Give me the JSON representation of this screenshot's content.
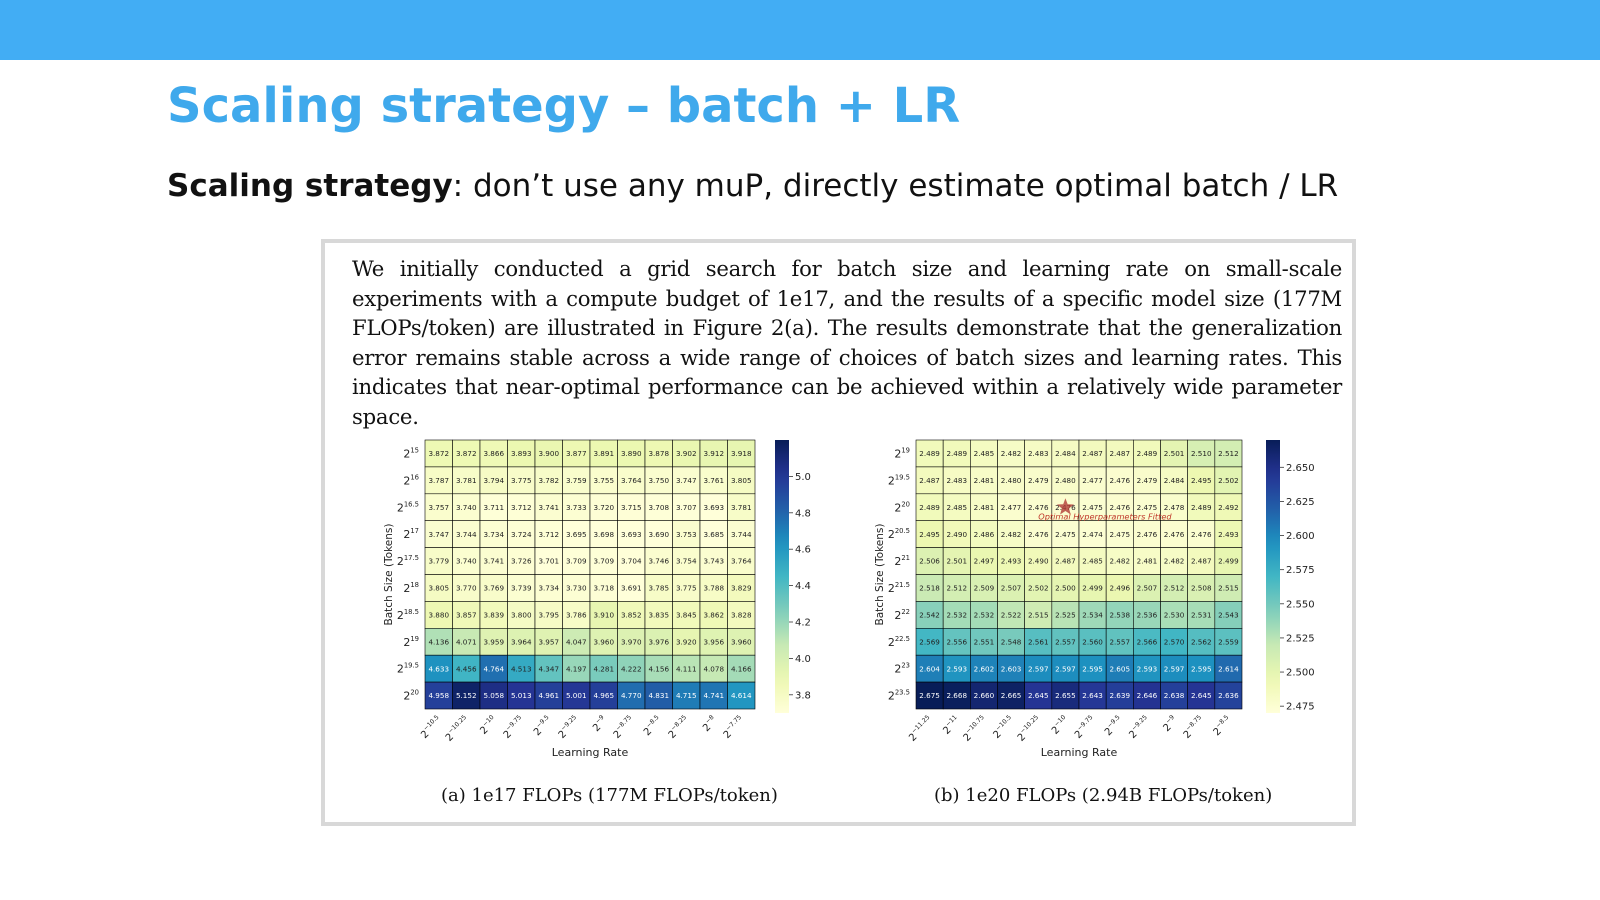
{
  "slide": {
    "title": "Scaling strategy – batch + LR",
    "subtitle_bold": "Scaling strategy",
    "subtitle_rest": ": don’t use any muP, directly estimate optimal batch / LR",
    "paragraph": "We initially conducted a grid search for batch size and learning rate on small-scale experiments with a compute budget of 1e17, and the results of a specific model size (177M FLOPs/token) are illustrated in Figure 2(a). The results demonstrate that the generalization error remains stable across a wide range of choices of batch sizes and learning rates. This indicates that near-optimal performance can be achieved within a relatively wide parameter space.",
    "accent_color": "#42adf4",
    "title_color": "#3fa9ec"
  },
  "chart_data": [
    {
      "type": "heatmap",
      "caption": "(a)  1e17 FLOPs (177M FLOPs/token)",
      "xlabel": "Learning Rate",
      "ylabel": "Batch Size (Tokens)",
      "x_ticks": [
        {
          "base": "2",
          "exp": "−10.5"
        },
        {
          "base": "2",
          "exp": "−10.25"
        },
        {
          "base": "2",
          "exp": "−10"
        },
        {
          "base": "2",
          "exp": "−9.75"
        },
        {
          "base": "2",
          "exp": "−9.5"
        },
        {
          "base": "2",
          "exp": "−9.25"
        },
        {
          "base": "2",
          "exp": "−9"
        },
        {
          "base": "2",
          "exp": "−8.75"
        },
        {
          "base": "2",
          "exp": "−8.5"
        },
        {
          "base": "2",
          "exp": "−8.25"
        },
        {
          "base": "2",
          "exp": "−8"
        },
        {
          "base": "2",
          "exp": "−7.75"
        }
      ],
      "y_ticks": [
        {
          "base": "2",
          "exp": "15"
        },
        {
          "base": "2",
          "exp": "16"
        },
        {
          "base": "2",
          "exp": "16.5"
        },
        {
          "base": "2",
          "exp": "17"
        },
        {
          "base": "2",
          "exp": "17.5"
        },
        {
          "base": "2",
          "exp": "18"
        },
        {
          "base": "2",
          "exp": "18.5"
        },
        {
          "base": "2",
          "exp": "19"
        },
        {
          "base": "2",
          "exp": "19.5"
        },
        {
          "base": "2",
          "exp": "20"
        }
      ],
      "values": [
        [
          3.872,
          3.872,
          3.866,
          3.893,
          3.9,
          3.877,
          3.891,
          3.89,
          3.878,
          3.902,
          3.912,
          3.918
        ],
        [
          3.787,
          3.781,
          3.794,
          3.775,
          3.782,
          3.759,
          3.755,
          3.764,
          3.75,
          3.747,
          3.761,
          3.805
        ],
        [
          3.757,
          3.74,
          3.711,
          3.712,
          3.741,
          3.733,
          3.72,
          3.715,
          3.708,
          3.707,
          3.693,
          3.781
        ],
        [
          3.747,
          3.744,
          3.734,
          3.724,
          3.712,
          3.695,
          3.698,
          3.693,
          3.69,
          3.753,
          3.685,
          3.744
        ],
        [
          3.779,
          3.74,
          3.741,
          3.726,
          3.701,
          3.709,
          3.709,
          3.704,
          3.746,
          3.754,
          3.743,
          3.764
        ],
        [
          3.805,
          3.77,
          3.769,
          3.739,
          3.734,
          3.73,
          3.718,
          3.691,
          3.785,
          3.775,
          3.788,
          3.829
        ],
        [
          3.88,
          3.857,
          3.839,
          3.8,
          3.795,
          3.786,
          3.91,
          3.852,
          3.835,
          3.845,
          3.862,
          3.828
        ],
        [
          4.136,
          4.071,
          3.959,
          3.964,
          3.957,
          4.047,
          3.96,
          3.97,
          3.976,
          3.92,
          3.956,
          3.96
        ],
        [
          4.633,
          4.456,
          4.764,
          4.513,
          4.347,
          4.197,
          4.281,
          4.222,
          4.156,
          4.111,
          4.078,
          4.166
        ],
        [
          4.958,
          5.152,
          5.058,
          5.013,
          4.961,
          5.001,
          4.965,
          4.77,
          4.831,
          4.715,
          4.741,
          4.614
        ]
      ],
      "color_range": [
        3.7,
        5.2
      ],
      "colorbar_ticks": [
        "5.0",
        "4.8",
        "4.6",
        "4.4",
        "4.2",
        "4.0",
        "3.8"
      ],
      "colorbar_values": [
        5.0,
        4.8,
        4.6,
        4.4,
        4.2,
        4.0,
        3.8
      ]
    },
    {
      "type": "heatmap",
      "caption": "(b)  1e20 FLOPs (2.94B FLOPs/token)",
      "xlabel": "Learning Rate",
      "ylabel": "Batch Size (Tokens)",
      "annotation": "Optimal Hyperparameters Fitted",
      "star": {
        "row": 2,
        "col": 5
      },
      "x_ticks": [
        {
          "base": "2",
          "exp": "−11.25"
        },
        {
          "base": "2",
          "exp": "−11"
        },
        {
          "base": "2",
          "exp": "−10.75"
        },
        {
          "base": "2",
          "exp": "−10.5"
        },
        {
          "base": "2",
          "exp": "−10.25"
        },
        {
          "base": "2",
          "exp": "−10"
        },
        {
          "base": "2",
          "exp": "−9.75"
        },
        {
          "base": "2",
          "exp": "−9.5"
        },
        {
          "base": "2",
          "exp": "−9.25"
        },
        {
          "base": "2",
          "exp": "−9"
        },
        {
          "base": "2",
          "exp": "−8.75"
        },
        {
          "base": "2",
          "exp": "−8.5"
        }
      ],
      "y_ticks": [
        {
          "base": "2",
          "exp": "19"
        },
        {
          "base": "2",
          "exp": "19.5"
        },
        {
          "base": "2",
          "exp": "20"
        },
        {
          "base": "2",
          "exp": "20.5"
        },
        {
          "base": "2",
          "exp": "21"
        },
        {
          "base": "2",
          "exp": "21.5"
        },
        {
          "base": "2",
          "exp": "22"
        },
        {
          "base": "2",
          "exp": "22.5"
        },
        {
          "base": "2",
          "exp": "23"
        },
        {
          "base": "2",
          "exp": "23.5"
        }
      ],
      "values": [
        [
          2.489,
          2.489,
          2.485,
          2.482,
          2.483,
          2.484,
          2.487,
          2.487,
          2.489,
          2.501,
          2.51,
          2.512
        ],
        [
          2.487,
          2.483,
          2.481,
          2.48,
          2.479,
          2.48,
          2.477,
          2.476,
          2.479,
          2.484,
          2.495,
          2.502
        ],
        [
          2.489,
          2.485,
          2.481,
          2.477,
          2.476,
          2.476,
          2.475,
          2.476,
          2.475,
          2.478,
          2.489,
          2.492
        ],
        [
          2.495,
          2.49,
          2.486,
          2.482,
          2.476,
          2.475,
          2.474,
          2.475,
          2.476,
          2.476,
          2.476,
          2.493
        ],
        [
          2.506,
          2.501,
          2.497,
          2.493,
          2.49,
          2.487,
          2.485,
          2.482,
          2.481,
          2.482,
          2.487,
          2.499
        ],
        [
          2.518,
          2.512,
          2.509,
          2.507,
          2.502,
          2.5,
          2.499,
          2.496,
          2.507,
          2.512,
          2.508,
          2.515
        ],
        [
          2.542,
          2.532,
          2.532,
          2.522,
          2.515,
          2.525,
          2.534,
          2.538,
          2.536,
          2.53,
          2.531,
          2.543
        ],
        [
          2.569,
          2.556,
          2.551,
          2.548,
          2.561,
          2.557,
          2.56,
          2.557,
          2.566,
          2.57,
          2.562,
          2.559
        ],
        [
          2.604,
          2.593,
          2.602,
          2.603,
          2.597,
          2.597,
          2.595,
          2.605,
          2.593,
          2.597,
          2.595,
          2.614
        ],
        [
          2.675,
          2.668,
          2.66,
          2.665,
          2.645,
          2.655,
          2.643,
          2.639,
          2.646,
          2.638,
          2.645,
          2.636
        ]
      ],
      "color_range": [
        2.47,
        2.67
      ],
      "colorbar_ticks": [
        "2.650",
        "2.625",
        "2.600",
        "2.575",
        "2.550",
        "2.525",
        "2.500",
        "2.475"
      ],
      "colorbar_values": [
        2.65,
        2.625,
        2.6,
        2.575,
        2.55,
        2.525,
        2.5,
        2.475
      ]
    }
  ]
}
